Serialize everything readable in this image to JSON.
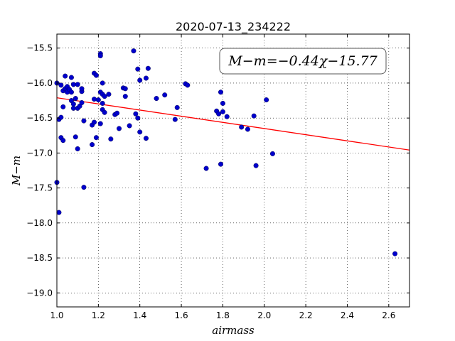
{
  "chart_data": {
    "type": "scatter",
    "title": "2020-07-13_234222",
    "xlabel": "airmass",
    "ylabel": "M−m",
    "xlim": [
      1.0,
      2.7
    ],
    "ylim": [
      -19.2,
      -15.3
    ],
    "y_inverted": true,
    "grid": true,
    "grid_style": "dotted",
    "x_ticks": [
      1.0,
      1.2,
      1.4,
      1.6,
      1.8,
      2.0,
      2.2,
      2.4,
      2.6
    ],
    "x_tick_labels": [
      "1.0",
      "1.2",
      "1.4",
      "1.6",
      "1.8",
      "2.0",
      "2.2",
      "2.4",
      "2.6"
    ],
    "y_ticks": [
      -15.5,
      -16.0,
      -16.5,
      -17.0,
      -17.5,
      -18.0,
      -18.5,
      -19.0
    ],
    "y_tick_labels": [
      "−15.5",
      "−16.0",
      "−16.5",
      "−17.0",
      "−17.5",
      "−18.0",
      "−18.5",
      "−19.0"
    ],
    "annotation": "M−m=−0.44χ−15.77",
    "fit": {
      "slope": -0.44,
      "intercept": -15.77,
      "color": "#ff0000"
    },
    "marker_color": "#0000cc",
    "points": [
      {
        "x": 1.0,
        "y": -16.0
      },
      {
        "x": 1.0,
        "y": -17.42
      },
      {
        "x": 1.01,
        "y": -17.85
      },
      {
        "x": 1.01,
        "y": -16.52
      },
      {
        "x": 1.02,
        "y": -16.03
      },
      {
        "x": 1.02,
        "y": -16.78
      },
      {
        "x": 1.02,
        "y": -16.49
      },
      {
        "x": 1.03,
        "y": -16.11
      },
      {
        "x": 1.03,
        "y": -16.34
      },
      {
        "x": 1.03,
        "y": -16.82
      },
      {
        "x": 1.04,
        "y": -15.9
      },
      {
        "x": 1.04,
        "y": -16.08
      },
      {
        "x": 1.05,
        "y": -16.13
      },
      {
        "x": 1.05,
        "y": -16.05
      },
      {
        "x": 1.06,
        "y": -16.09
      },
      {
        "x": 1.07,
        "y": -15.92
      },
      {
        "x": 1.07,
        "y": -16.13
      },
      {
        "x": 1.07,
        "y": -16.25
      },
      {
        "x": 1.08,
        "y": -16.02
      },
      {
        "x": 1.08,
        "y": -16.3
      },
      {
        "x": 1.08,
        "y": -16.36
      },
      {
        "x": 1.09,
        "y": -16.22
      },
      {
        "x": 1.09,
        "y": -16.77
      },
      {
        "x": 1.1,
        "y": -16.02
      },
      {
        "x": 1.1,
        "y": -16.36
      },
      {
        "x": 1.1,
        "y": -16.94
      },
      {
        "x": 1.11,
        "y": -16.33
      },
      {
        "x": 1.12,
        "y": -16.28
      },
      {
        "x": 1.12,
        "y": -16.12
      },
      {
        "x": 1.12,
        "y": -16.08
      },
      {
        "x": 1.13,
        "y": -17.49
      },
      {
        "x": 1.13,
        "y": -16.54
      },
      {
        "x": 1.17,
        "y": -16.88
      },
      {
        "x": 1.17,
        "y": -16.6
      },
      {
        "x": 1.18,
        "y": -15.86
      },
      {
        "x": 1.18,
        "y": -16.23
      },
      {
        "x": 1.18,
        "y": -16.56
      },
      {
        "x": 1.19,
        "y": -15.89
      },
      {
        "x": 1.19,
        "y": -16.78
      },
      {
        "x": 1.2,
        "y": -16.24
      },
      {
        "x": 1.21,
        "y": -16.13
      },
      {
        "x": 1.21,
        "y": -16.58
      },
      {
        "x": 1.21,
        "y": -15.58
      },
      {
        "x": 1.21,
        "y": -15.61
      },
      {
        "x": 1.22,
        "y": -16.0
      },
      {
        "x": 1.22,
        "y": -16.16
      },
      {
        "x": 1.22,
        "y": -16.29
      },
      {
        "x": 1.22,
        "y": -16.38
      },
      {
        "x": 1.23,
        "y": -16.42
      },
      {
        "x": 1.23,
        "y": -16.19
      },
      {
        "x": 1.25,
        "y": -16.16
      },
      {
        "x": 1.26,
        "y": -16.8
      },
      {
        "x": 1.28,
        "y": -16.45
      },
      {
        "x": 1.29,
        "y": -16.43
      },
      {
        "x": 1.3,
        "y": -16.65
      },
      {
        "x": 1.32,
        "y": -16.07
      },
      {
        "x": 1.33,
        "y": -16.08
      },
      {
        "x": 1.33,
        "y": -16.19
      },
      {
        "x": 1.35,
        "y": -16.61
      },
      {
        "x": 1.37,
        "y": -15.54
      },
      {
        "x": 1.38,
        "y": -16.44
      },
      {
        "x": 1.39,
        "y": -15.8
      },
      {
        "x": 1.39,
        "y": -16.5
      },
      {
        "x": 1.4,
        "y": -15.96
      },
      {
        "x": 1.4,
        "y": -16.7
      },
      {
        "x": 1.43,
        "y": -15.93
      },
      {
        "x": 1.43,
        "y": -16.79
      },
      {
        "x": 1.44,
        "y": -15.79
      },
      {
        "x": 1.48,
        "y": -16.22
      },
      {
        "x": 1.52,
        "y": -16.17
      },
      {
        "x": 1.57,
        "y": -16.52
      },
      {
        "x": 1.58,
        "y": -16.35
      },
      {
        "x": 1.62,
        "y": -16.01
      },
      {
        "x": 1.63,
        "y": -16.03
      },
      {
        "x": 1.72,
        "y": -17.22
      },
      {
        "x": 1.77,
        "y": -16.4
      },
      {
        "x": 1.78,
        "y": -16.44
      },
      {
        "x": 1.79,
        "y": -17.16
      },
      {
        "x": 1.79,
        "y": -16.13
      },
      {
        "x": 1.8,
        "y": -16.29
      },
      {
        "x": 1.8,
        "y": -16.41
      },
      {
        "x": 1.82,
        "y": -16.48
      },
      {
        "x": 1.89,
        "y": -16.63
      },
      {
        "x": 1.92,
        "y": -16.66
      },
      {
        "x": 1.95,
        "y": -16.47
      },
      {
        "x": 1.96,
        "y": -17.18
      },
      {
        "x": 2.01,
        "y": -16.24
      },
      {
        "x": 2.04,
        "y": -17.01
      },
      {
        "x": 2.63,
        "y": -18.44
      }
    ]
  }
}
